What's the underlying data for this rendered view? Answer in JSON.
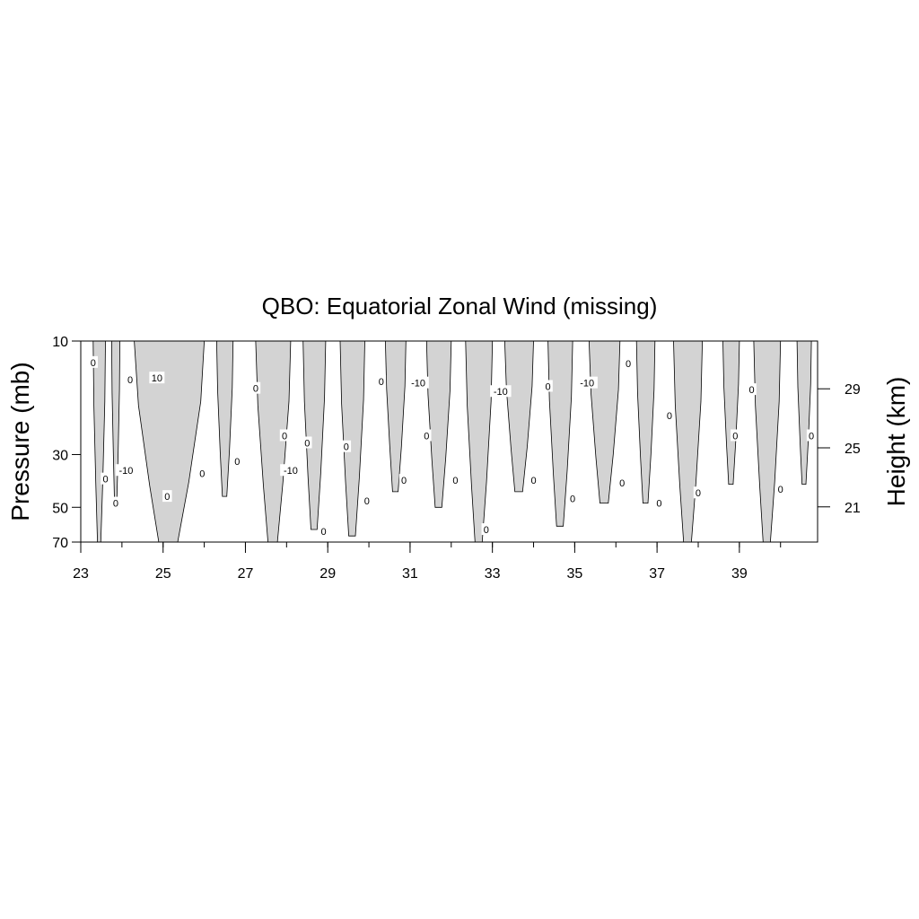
{
  "chart_data": {
    "type": "contour",
    "title": "QBO: Equatorial Zonal Wind (missing)",
    "ylabel": "Pressure (mb)",
    "y2label": "Height (km)",
    "xlabel": "",
    "x_ticks": [
      23,
      25,
      27,
      29,
      31,
      33,
      35,
      37,
      39
    ],
    "x_tick_labels": [
      "23",
      "25",
      "27",
      "29",
      "31",
      "33",
      "35",
      "37",
      "39"
    ],
    "xlim": [
      23,
      40.9
    ],
    "y_ticks": [
      10,
      30,
      50,
      70
    ],
    "y_tick_labels": [
      "10",
      "30",
      "50",
      "70"
    ],
    "ylim": [
      70,
      10
    ],
    "y2_ticks": [
      29,
      25,
      21
    ],
    "y2_tick_labels": [
      "29",
      "25",
      "21"
    ],
    "fill": {
      "negative_color": "#d3d3d3",
      "positive_color": "#ffffff"
    },
    "contour_levels": [
      -10,
      0,
      10
    ],
    "negative_regions": [
      {
        "x0": 23.3,
        "x1": 23.6,
        "top": 10,
        "bottom": 70
      },
      {
        "x0": 23.75,
        "x1": 23.95,
        "top": 10,
        "bottom": 48
      },
      {
        "x0": 24.3,
        "x1": 26.0,
        "top": 10,
        "bottom": 70
      },
      {
        "x0": 26.3,
        "x1": 26.7,
        "top": 10,
        "bottom": 45
      },
      {
        "x0": 27.25,
        "x1": 28.1,
        "top": 10,
        "bottom": 70
      },
      {
        "x0": 28.4,
        "x1": 28.95,
        "top": 10,
        "bottom": 62
      },
      {
        "x0": 29.3,
        "x1": 29.9,
        "top": 10,
        "bottom": 66
      },
      {
        "x0": 30.4,
        "x1": 30.9,
        "top": 10,
        "bottom": 43
      },
      {
        "x0": 31.4,
        "x1": 32.0,
        "top": 10,
        "bottom": 50
      },
      {
        "x0": 32.35,
        "x1": 33.0,
        "top": 10,
        "bottom": 70
      },
      {
        "x0": 33.3,
        "x1": 34.0,
        "top": 10,
        "bottom": 43
      },
      {
        "x0": 34.35,
        "x1": 34.95,
        "top": 10,
        "bottom": 60
      },
      {
        "x0": 35.35,
        "x1": 36.1,
        "top": 10,
        "bottom": 48
      },
      {
        "x0": 36.5,
        "x1": 36.95,
        "top": 10,
        "bottom": 48
      },
      {
        "x0": 37.4,
        "x1": 38.1,
        "top": 10,
        "bottom": 70
      },
      {
        "x0": 38.6,
        "x1": 39.0,
        "top": 10,
        "bottom": 40
      },
      {
        "x0": 39.35,
        "x1": 40.0,
        "top": 10,
        "bottom": 70
      },
      {
        "x0": 40.4,
        "x1": 40.75,
        "top": 10,
        "bottom": 40
      }
    ],
    "contour_labels": [
      {
        "text": "0",
        "x": 23.3,
        "p": 12.3
      },
      {
        "text": "0",
        "x": 23.6,
        "p": 38
      },
      {
        "text": "0",
        "x": 23.85,
        "p": 48
      },
      {
        "text": "-10",
        "x": 24.1,
        "p": 35
      },
      {
        "text": "0",
        "x": 24.2,
        "p": 14.5
      },
      {
        "text": "10",
        "x": 24.85,
        "p": 14.3
      },
      {
        "text": "0",
        "x": 25.1,
        "p": 45
      },
      {
        "text": "0",
        "x": 25.95,
        "p": 36
      },
      {
        "text": "0",
        "x": 26.8,
        "p": 32
      },
      {
        "text": "0",
        "x": 27.25,
        "p": 15.8
      },
      {
        "text": "0",
        "x": 27.95,
        "p": 25
      },
      {
        "text": "-10",
        "x": 28.1,
        "p": 35
      },
      {
        "text": "0",
        "x": 28.5,
        "p": 26.8
      },
      {
        "text": "0",
        "x": 28.9,
        "p": 63
      },
      {
        "text": "0",
        "x": 29.45,
        "p": 27.8
      },
      {
        "text": "0",
        "x": 29.95,
        "p": 47
      },
      {
        "text": "0",
        "x": 30.3,
        "p": 14.8
      },
      {
        "text": "0",
        "x": 30.85,
        "p": 38.5
      },
      {
        "text": "-10",
        "x": 31.2,
        "p": 15
      },
      {
        "text": "0",
        "x": 31.4,
        "p": 25
      },
      {
        "text": "0",
        "x": 32.1,
        "p": 38.5
      },
      {
        "text": "0",
        "x": 32.85,
        "p": 62
      },
      {
        "text": "-10",
        "x": 33.2,
        "p": 16.3
      },
      {
        "text": "0",
        "x": 34.0,
        "p": 38.5
      },
      {
        "text": "0",
        "x": 34.35,
        "p": 15.5
      },
      {
        "text": "0",
        "x": 34.95,
        "p": 46
      },
      {
        "text": "-10",
        "x": 35.3,
        "p": 15
      },
      {
        "text": "0",
        "x": 36.15,
        "p": 39.5
      },
      {
        "text": "0",
        "x": 36.3,
        "p": 12.4
      },
      {
        "text": "0",
        "x": 37.05,
        "p": 48
      },
      {
        "text": "0",
        "x": 37.3,
        "p": 20.6
      },
      {
        "text": "0",
        "x": 38.0,
        "p": 43.5
      },
      {
        "text": "0",
        "x": 38.9,
        "p": 25
      },
      {
        "text": "0",
        "x": 39.3,
        "p": 16
      },
      {
        "text": "0",
        "x": 40.0,
        "p": 42
      },
      {
        "text": "0",
        "x": 40.75,
        "p": 25
      }
    ]
  }
}
